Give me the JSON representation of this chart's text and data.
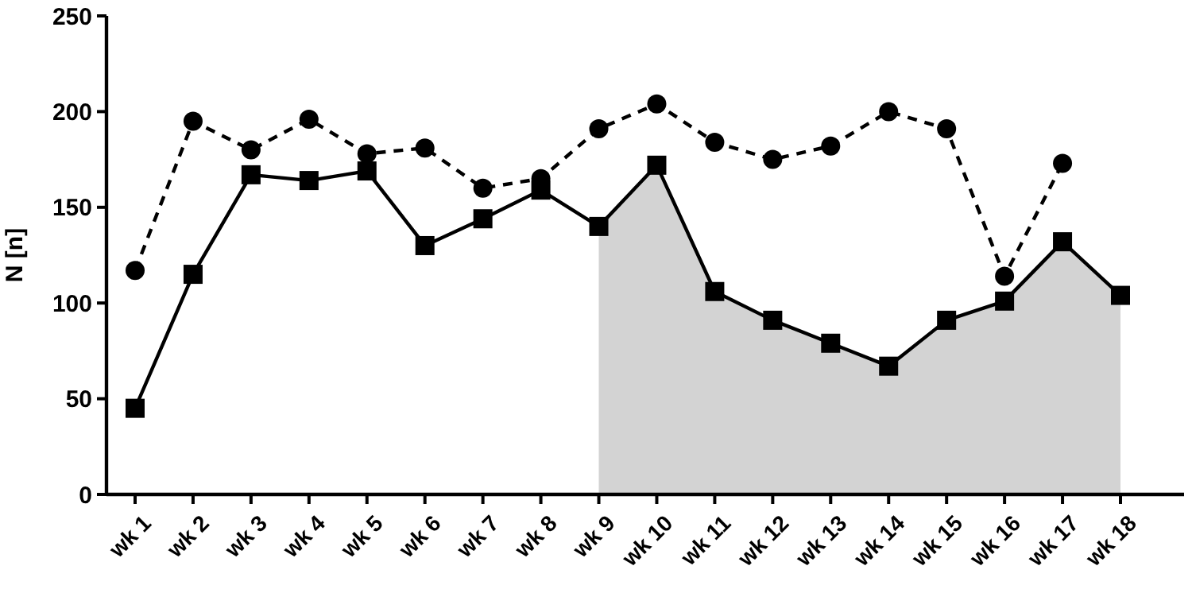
{
  "chart_data": {
    "type": "line",
    "ylabel": "N [n]",
    "categories": [
      "wk 1",
      "wk 2",
      "wk 3",
      "wk 4",
      "wk 5",
      "wk 6",
      "wk 7",
      "wk 8",
      "wk 9",
      "wk 10",
      "wk 11",
      "wk 12",
      "wk 13",
      "wk 14",
      "wk 15",
      "wk 16",
      "wk 17",
      "wk 18"
    ],
    "ylim": [
      0,
      250
    ],
    "yticks": [
      0,
      50,
      100,
      150,
      200,
      250
    ],
    "grid": false,
    "series": [
      {
        "type": "area",
        "color": "#d3d3d3",
        "values": [
          null,
          null,
          null,
          null,
          null,
          null,
          null,
          null,
          140,
          172,
          106,
          91,
          79,
          67,
          91,
          101,
          132,
          104
        ]
      },
      {
        "color": "#000000",
        "marker": "circle",
        "line_style": "dashed",
        "values": [
          117,
          195,
          180,
          196,
          178,
          181,
          160,
          165,
          191,
          204,
          184,
          175,
          182,
          200,
          191,
          114,
          173,
          null
        ]
      },
      {
        "color": "#000000",
        "marker": "square",
        "line_style": "solid",
        "values": [
          45,
          115,
          167,
          164,
          169,
          130,
          144,
          159,
          140,
          172,
          106,
          91,
          79,
          67,
          91,
          101,
          132,
          104
        ]
      }
    ]
  }
}
